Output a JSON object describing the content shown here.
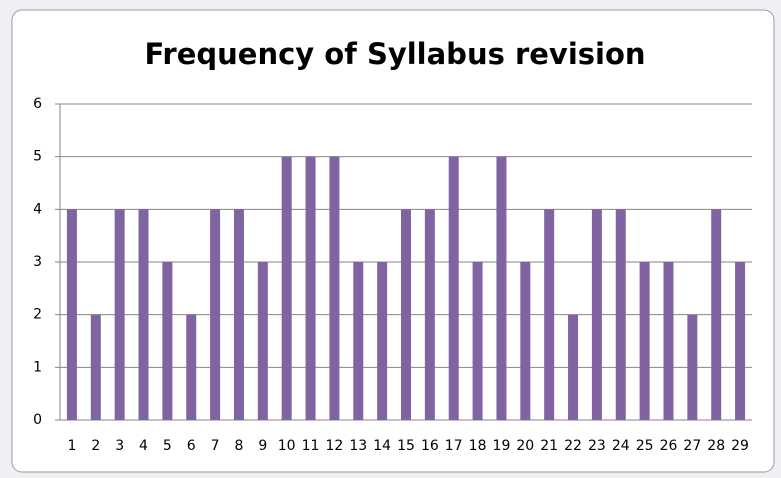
{
  "chart_data": {
    "type": "bar",
    "title": "Frequency of Syllabus revision",
    "categories": [
      "1",
      "2",
      "3",
      "4",
      "5",
      "6",
      "7",
      "8",
      "9",
      "10",
      "11",
      "12",
      "13",
      "14",
      "15",
      "16",
      "17",
      "18",
      "19",
      "20",
      "21",
      "22",
      "23",
      "24",
      "25",
      "26",
      "27",
      "28",
      "29"
    ],
    "values": [
      4,
      2,
      4,
      4,
      3,
      2,
      4,
      4,
      3,
      5,
      5,
      5,
      3,
      3,
      4,
      4,
      5,
      3,
      5,
      3,
      4,
      2,
      4,
      4,
      3,
      3,
      2,
      4,
      3
    ],
    "color": "#8064a2",
    "ylim": [
      0,
      6
    ],
    "yticks": [
      0,
      1,
      2,
      3,
      4,
      5,
      6
    ],
    "grid": true
  }
}
